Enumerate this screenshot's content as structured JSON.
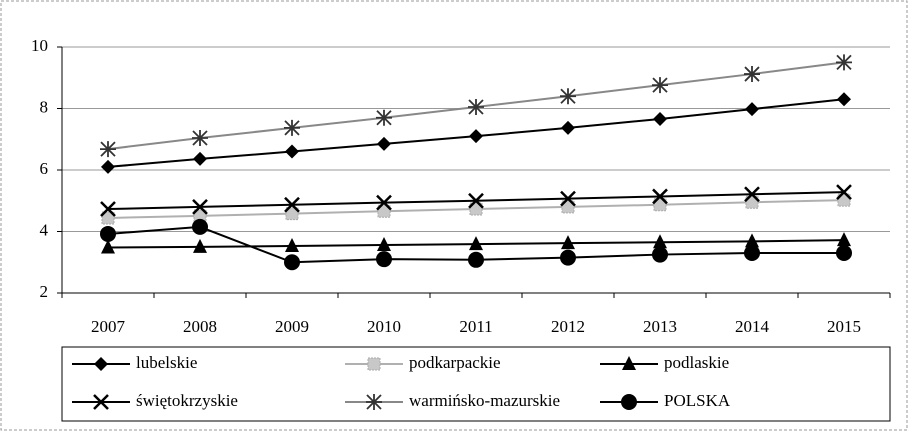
{
  "chart_data": {
    "type": "line",
    "categories": [
      "2007",
      "2008",
      "2009",
      "2010",
      "2011",
      "2012",
      "2013",
      "2014",
      "2015"
    ],
    "series": [
      {
        "name": "lubelskie",
        "color": "#000000",
        "marker": "diamond",
        "values": [
          6.1,
          6.36,
          6.6,
          6.85,
          7.1,
          7.37,
          7.66,
          7.98,
          8.3
        ]
      },
      {
        "name": "podkarpackie",
        "color": "#b0b0b0",
        "marker": "square",
        "values": [
          4.44,
          4.51,
          4.58,
          4.66,
          4.73,
          4.8,
          4.87,
          4.95,
          5.02
        ]
      },
      {
        "name": "podlaskie",
        "color": "#000000",
        "marker": "triangle",
        "values": [
          3.48,
          3.5,
          3.53,
          3.56,
          3.59,
          3.62,
          3.65,
          3.68,
          3.72
        ]
      },
      {
        "name": "świętokrzyskie",
        "color": "#000000",
        "marker": "x",
        "values": [
          4.73,
          4.8,
          4.87,
          4.94,
          5.0,
          5.07,
          5.14,
          5.21,
          5.28
        ]
      },
      {
        "name": "warmińsko-mazurskie",
        "color": "#888888",
        "marker": "star",
        "values": [
          6.68,
          7.04,
          7.37,
          7.7,
          8.05,
          8.4,
          8.76,
          9.12,
          9.5
        ]
      },
      {
        "name": "POLSKA",
        "color": "#000000",
        "marker": "circle",
        "values": [
          3.92,
          4.15,
          3.0,
          3.1,
          3.08,
          3.15,
          3.25,
          3.3,
          3.3
        ]
      }
    ],
    "ylim": [
      2,
      10
    ],
    "yticks": [
      2,
      4,
      6,
      8,
      10
    ],
    "grid": true,
    "legend": "bottom"
  }
}
